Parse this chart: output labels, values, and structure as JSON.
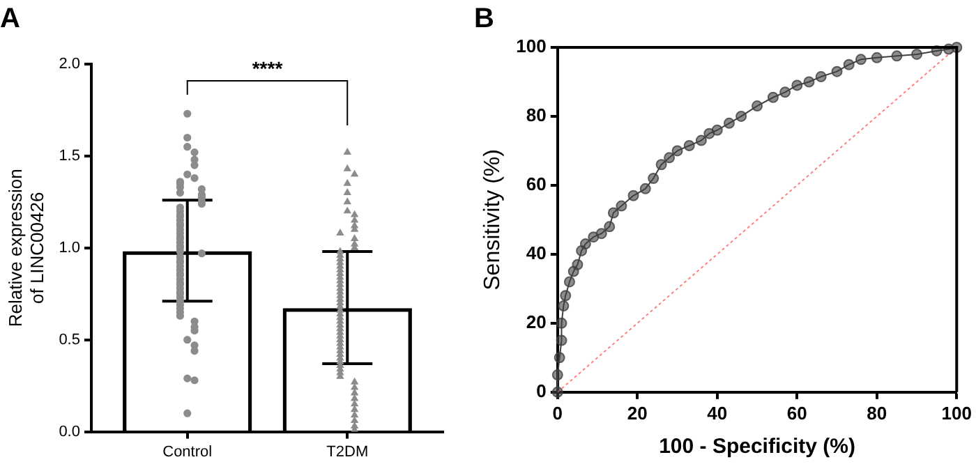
{
  "chart_data": [
    {
      "type": "bar",
      "title": "A",
      "ylabel": "Relative expression of LINC00426",
      "categories": [
        "Control",
        "T2DM"
      ],
      "ylim": [
        0,
        2
      ],
      "yticks": [
        {
          "value": 0,
          "label": "0.0"
        },
        {
          "value": 0.5,
          "label": "0.5"
        },
        {
          "value": 1,
          "label": "1.0"
        },
        {
          "value": 1.5,
          "label": "1.5"
        },
        {
          "value": 2,
          "label": "2.0"
        }
      ],
      "grid": false,
      "legend": false,
      "annotations": [
        "****"
      ],
      "series": [
        {
          "type": "bar",
          "color": "#000000",
          "values": [
            0.98,
            0.67
          ],
          "errors": [
            [
              0.71,
              1.26
            ],
            [
              0.37,
              0.98
            ]
          ]
        },
        {
          "type": "scatter",
          "marker": "circle",
          "color": "#8c8c8c",
          "x": [
            "Control",
            "Control",
            "Control",
            "Control",
            "Control",
            "Control",
            "Control",
            "Control",
            "Control",
            "Control",
            "Control",
            "Control",
            "Control",
            "Control",
            "Control",
            "Control",
            "Control",
            "Control",
            "Control",
            "Control",
            "Control",
            "Control",
            "Control",
            "Control",
            "Control",
            "Control",
            "Control",
            "Control",
            "Control",
            "Control",
            "Control",
            "Control",
            "Control",
            "Control",
            "Control",
            "Control",
            "Control",
            "Control",
            "Control",
            "Control",
            "Control",
            "Control",
            "Control",
            "Control",
            "Control",
            "Control",
            "Control",
            "Control",
            "Control",
            "Control",
            "Control",
            "Control",
            "Control",
            "Control",
            "Control",
            "Control",
            "Control",
            "Control",
            "Control",
            "Control",
            "Control",
            "Control"
          ],
          "values": [
            1.73,
            1.6,
            1.55,
            1.52,
            1.48,
            1.45,
            1.4,
            1.38,
            1.36,
            1.35,
            1.33,
            1.32,
            1.3,
            1.29,
            1.28,
            1.27,
            1.25,
            1.24,
            1.22,
            1.2,
            1.18,
            1.17,
            1.15,
            1.13,
            1.12,
            1.1,
            1.08,
            1.06,
            1.05,
            1.03,
            1.01,
            1.0,
            0.98,
            0.97,
            0.95,
            0.93,
            0.92,
            0.9,
            0.88,
            0.86,
            0.85,
            0.83,
            0.81,
            0.8,
            0.78,
            0.76,
            0.75,
            0.73,
            0.71,
            0.69,
            0.67,
            0.65,
            0.63,
            0.6,
            0.57,
            0.55,
            0.5,
            0.47,
            0.44,
            0.29,
            0.28,
            0.1
          ]
        },
        {
          "type": "scatter",
          "marker": "triangle",
          "color": "#8c8c8c",
          "x": [
            "T2DM",
            "T2DM",
            "T2DM",
            "T2DM",
            "T2DM",
            "T2DM",
            "T2DM",
            "T2DM",
            "T2DM",
            "T2DM",
            "T2DM",
            "T2DM",
            "T2DM",
            "T2DM",
            "T2DM",
            "T2DM",
            "T2DM",
            "T2DM",
            "T2DM",
            "T2DM",
            "T2DM",
            "T2DM",
            "T2DM",
            "T2DM",
            "T2DM",
            "T2DM",
            "T2DM",
            "T2DM",
            "T2DM",
            "T2DM",
            "T2DM",
            "T2DM",
            "T2DM",
            "T2DM",
            "T2DM",
            "T2DM",
            "T2DM",
            "T2DM",
            "T2DM",
            "T2DM",
            "T2DM",
            "T2DM",
            "T2DM",
            "T2DM",
            "T2DM",
            "T2DM",
            "T2DM",
            "T2DM",
            "T2DM",
            "T2DM",
            "T2DM",
            "T2DM",
            "T2DM",
            "T2DM",
            "T2DM",
            "T2DM",
            "T2DM",
            "T2DM",
            "T2DM",
            "T2DM"
          ],
          "values": [
            1.52,
            1.43,
            1.4,
            1.35,
            1.3,
            1.25,
            1.2,
            1.18,
            1.15,
            1.12,
            1.1,
            1.08,
            1.05,
            1.02,
            1.0,
            0.98,
            0.96,
            0.94,
            0.92,
            0.9,
            0.88,
            0.86,
            0.84,
            0.82,
            0.8,
            0.78,
            0.76,
            0.74,
            0.72,
            0.7,
            0.68,
            0.66,
            0.64,
            0.62,
            0.6,
            0.58,
            0.56,
            0.54,
            0.52,
            0.5,
            0.48,
            0.46,
            0.44,
            0.42,
            0.4,
            0.38,
            0.36,
            0.34,
            0.32,
            0.3,
            0.27,
            0.24,
            0.21,
            0.18,
            0.15,
            0.12,
            0.09,
            0.06,
            0.03,
            0.01
          ]
        }
      ]
    },
    {
      "type": "line",
      "title": "B",
      "xlabel": "100 - Specificity (%)",
      "ylabel": "Sensitivity (%)",
      "xlim": [
        0,
        100
      ],
      "xticks": [
        0,
        20,
        40,
        60,
        80,
        100
      ],
      "ylim": [
        0,
        100
      ],
      "yticks": [
        0,
        20,
        40,
        60,
        80,
        100
      ],
      "grid": false,
      "legend": false,
      "series": [
        {
          "color": "#404040",
          "marker": "circle",
          "line_style": "solid",
          "x": [
            0,
            0,
            0.5,
            1,
            1,
            1.5,
            2,
            3,
            4,
            5,
            6,
            7,
            9,
            11,
            13,
            14,
            16,
            19,
            22,
            24,
            26,
            28,
            30,
            33,
            36,
            38,
            40,
            43,
            46,
            50,
            54,
            57,
            60,
            63,
            66,
            70,
            73,
            76,
            80,
            85,
            90,
            95,
            98,
            100
          ],
          "values": [
            0,
            5,
            10,
            15,
            20,
            25,
            28,
            32,
            35,
            37,
            41,
            43,
            45,
            46,
            48,
            52,
            54,
            57,
            59,
            62,
            66,
            68,
            70,
            71.5,
            73,
            75,
            76,
            78,
            80,
            83,
            85.5,
            87,
            89,
            90,
            91.5,
            93,
            95,
            96.5,
            97,
            97.5,
            98,
            99,
            99.5,
            100
          ]
        },
        {
          "color": "#ff8080",
          "marker": "none",
          "line_style": "dotted",
          "x": [
            0,
            100
          ],
          "values": [
            0,
            100
          ]
        }
      ]
    }
  ]
}
